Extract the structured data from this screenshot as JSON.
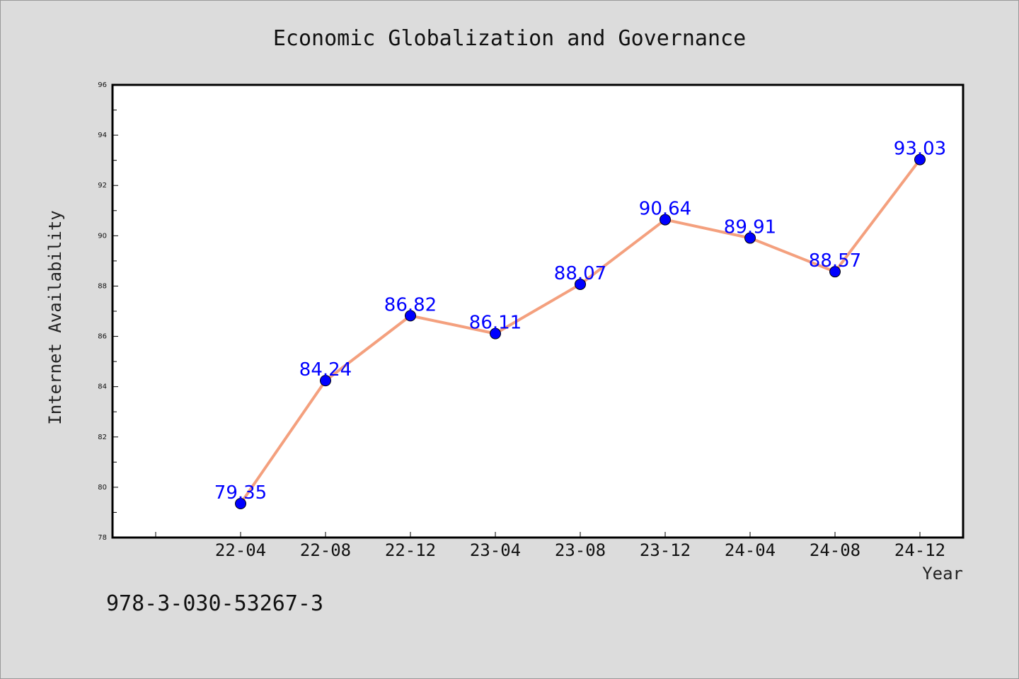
{
  "chart_data": {
    "type": "line",
    "title": "Economic Globalization and Governance",
    "xlabel": "Year",
    "ylabel": "Internet Availability",
    "categories": [
      "22-04",
      "22-08",
      "22-12",
      "23-04",
      "23-08",
      "23-12",
      "24-04",
      "24-08",
      "24-12"
    ],
    "series": [
      {
        "values": [
          79.35,
          84.24,
          86.82,
          86.11,
          88.07,
          90.64,
          89.91,
          88.57,
          93.03
        ]
      }
    ],
    "data_labels": [
      "79.35",
      "84.24",
      "86.82",
      "86.11",
      "88.07",
      "90.64",
      "89.91",
      "88.57",
      "93.03"
    ],
    "ylim": [
      78,
      96
    ],
    "yticks": [
      78,
      80,
      82,
      84,
      86,
      88,
      90,
      92,
      94,
      96
    ],
    "grid": false,
    "legend": "none",
    "colors": {
      "line": "#f4a07e",
      "marker": "#0000ff",
      "data_label": "#0000ff",
      "background": "#dcdcdc",
      "plot_background": "#ffffff"
    }
  },
  "footer": {
    "isbn": "978-3-030-53267-3"
  }
}
